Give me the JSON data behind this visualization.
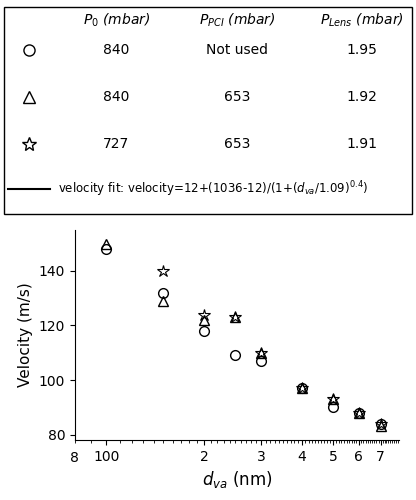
{
  "title": "",
  "ylabel": "Velocity (m/s)",
  "xlabel": "$d_{va}$ (nm)",
  "xlim": [
    80,
    800
  ],
  "ylim": [
    78,
    155
  ],
  "yticks": [
    80,
    100,
    120,
    140
  ],
  "xticks_major": [
    100,
    200,
    300,
    400,
    500,
    600,
    700
  ],
  "fit_params": {
    "v_low": 12,
    "v_high": 1036,
    "d0": 1.09,
    "exponent": 0.4
  },
  "circle_data": {
    "x": [
      100,
      150,
      200,
      250,
      300,
      400,
      500,
      600,
      700
    ],
    "y": [
      148,
      132,
      118,
      109,
      107,
      97,
      90,
      88,
      84
    ]
  },
  "triangle_data": {
    "x": [
      100,
      150,
      200,
      250,
      300,
      400,
      500,
      600,
      700
    ],
    "y": [
      150,
      129,
      122,
      123,
      110,
      97,
      93,
      88,
      83
    ]
  },
  "star_data": {
    "x": [
      150,
      200,
      250,
      300,
      400,
      500,
      600,
      700
    ],
    "y": [
      140,
      124,
      123,
      110,
      97,
      93,
      88,
      84
    ]
  },
  "legend_entries": [
    {
      "marker": "o",
      "P0": "840",
      "PPCI": "Not used",
      "PLens": "1.95"
    },
    {
      "marker": "^",
      "P0": "840",
      "PPCI": "653",
      "PLens": "1.92"
    },
    {
      "marker": "*",
      "P0": "727",
      "PPCI": "653",
      "PLens": "1.91"
    }
  ],
  "background_color": "#ffffff",
  "marker_color": "black",
  "line_color": "black",
  "marker_size_circle": 7,
  "marker_size_triangle": 7,
  "marker_size_star": 9
}
